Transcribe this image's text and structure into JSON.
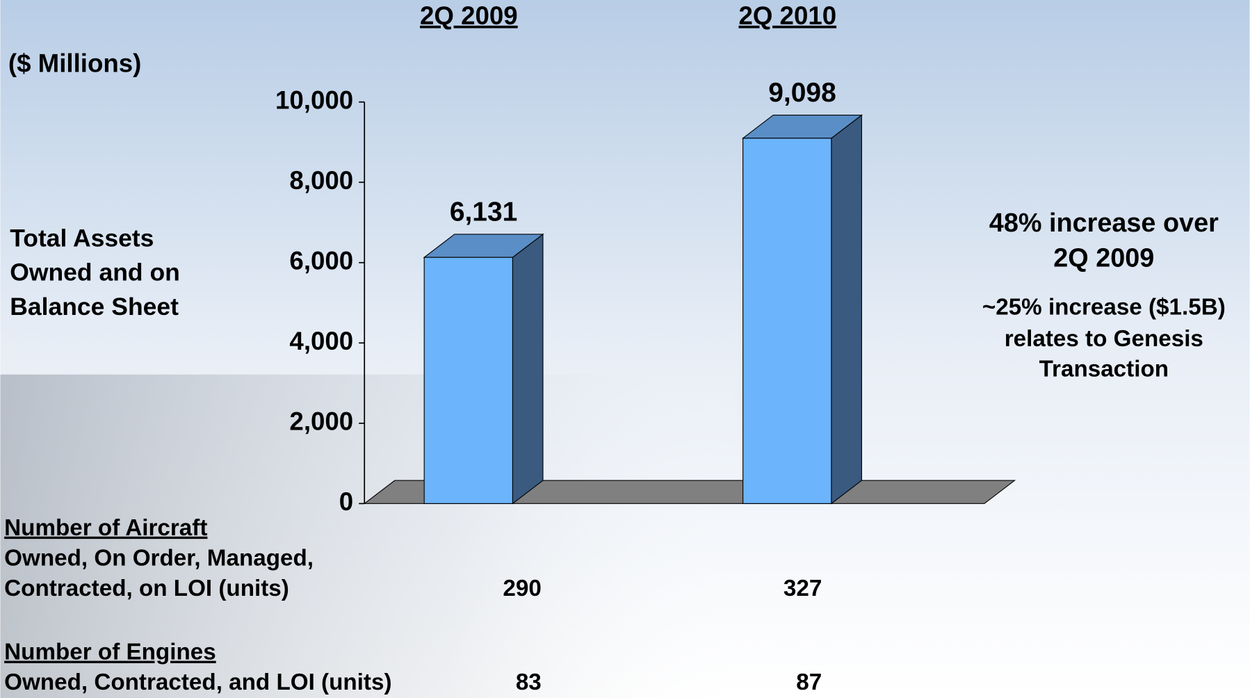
{
  "chart_data": {
    "type": "bar",
    "y_label": "($ Millions)",
    "side_label": [
      "Total Assets",
      "Owned and on",
      "Balance Sheet"
    ],
    "categories": [
      "2Q 2009",
      "2Q 2010"
    ],
    "values": [
      6131,
      9098
    ],
    "value_labels": [
      "6,131",
      "9,098"
    ],
    "color": "#6cb4fb",
    "ylim": [
      0,
      10000
    ],
    "yticks": [
      0,
      {
        "value": 2000,
        "label": "2,000"
      },
      {
        "value": 4000,
        "label": "4,000"
      },
      {
        "value": 6000,
        "label": "6,000"
      },
      {
        "value": 8000,
        "label": "8,000"
      },
      {
        "value": 10000,
        "label": "10,000"
      }
    ],
    "annotations": [
      [
        "48% increase over",
        "2Q 2009"
      ],
      [
        "~25% increase ($1.5B)",
        "relates to Genesis",
        "Transaction"
      ]
    ]
  },
  "table": {
    "rows": [
      {
        "header": "Number of Aircraft",
        "label_lines": [
          "Owned, On Order, Managed,",
          "Contracted, on LOI (units)"
        ],
        "values": [
          290,
          327
        ]
      },
      {
        "header": "Number of Engines",
        "label_lines": [
          "Owned, Contracted, and LOI (units)"
        ],
        "values": [
          83,
          87
        ]
      }
    ]
  }
}
